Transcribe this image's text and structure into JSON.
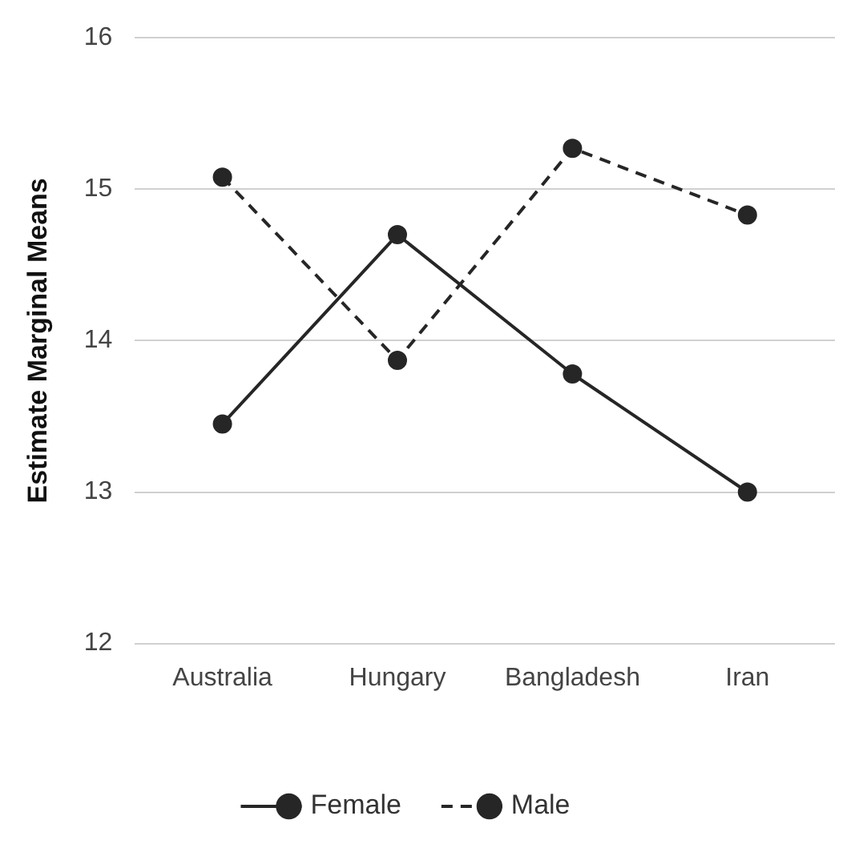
{
  "chart_data": {
    "type": "line",
    "ylabel": "Estimate Marginal Means",
    "categories": [
      "Australia",
      "Hungary",
      "Bangladesh",
      "Iran"
    ],
    "series": [
      {
        "name": "Female",
        "color": "#262626",
        "values": [
          13.45,
          14.7,
          13.78,
          13.0
        ],
        "line_style": "solid"
      },
      {
        "name": "Male",
        "color": "#262626",
        "values": [
          15.08,
          13.87,
          15.27,
          14.83
        ],
        "line_style": "dashed"
      }
    ],
    "ylim": [
      12,
      16
    ],
    "yticks": [
      12,
      13,
      14,
      15,
      16
    ],
    "grid": "y",
    "legend": "bottom",
    "marker": "circle"
  }
}
